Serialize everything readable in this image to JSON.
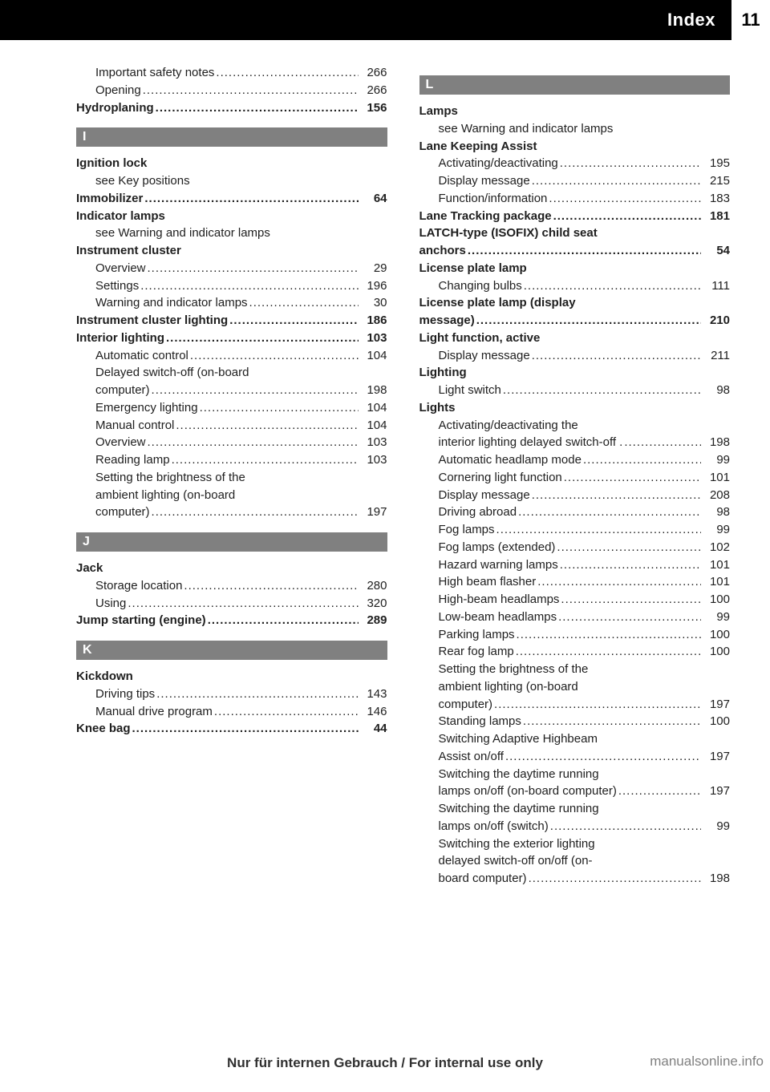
{
  "page_number": "11",
  "header_title": "Index",
  "footer_text": "Nur für internen Gebrauch / For internal use only",
  "watermark_text": "manualsonline.info",
  "dots": "....................................................................",
  "colors": {
    "header_bg": "#000000",
    "header_text": "#ffffff",
    "section_bg": "#808080",
    "section_text": "#ffffff",
    "body_text": "#202020",
    "page_bg": "#ffffff",
    "watermark_text": "#808080"
  },
  "columns": [
    {
      "items": [
        {
          "type": "entry",
          "level": 1,
          "bold": false,
          "label": "Important safety notes",
          "page": "266"
        },
        {
          "type": "entry",
          "level": 1,
          "bold": false,
          "label": "Opening",
          "page": "266"
        },
        {
          "type": "entry",
          "level": 0,
          "bold_all": true,
          "label": "Hydroplaning",
          "page": "156"
        },
        {
          "type": "section",
          "label": "I"
        },
        {
          "type": "line",
          "level": 0,
          "bold": true,
          "label": "Ignition lock"
        },
        {
          "type": "line",
          "level": 1,
          "bold": false,
          "label": "see Key positions"
        },
        {
          "type": "entry",
          "level": 0,
          "bold_all": true,
          "label": "Immobilizer",
          "page": "64"
        },
        {
          "type": "line",
          "level": 0,
          "bold": true,
          "label": "Indicator lamps"
        },
        {
          "type": "line",
          "level": 1,
          "bold": false,
          "label": "see Warning and indicator lamps"
        },
        {
          "type": "line",
          "level": 0,
          "bold": true,
          "label": "Instrument cluster"
        },
        {
          "type": "entry",
          "level": 1,
          "bold": false,
          "label": "Overview",
          "page": "29"
        },
        {
          "type": "entry",
          "level": 1,
          "bold": false,
          "label": "Settings",
          "page": "196"
        },
        {
          "type": "entry",
          "level": 1,
          "bold": false,
          "label": "Warning and indicator lamps",
          "page": "30"
        },
        {
          "type": "entry",
          "level": 0,
          "bold_all": true,
          "label": "Instrument cluster lighting",
          "page": "186"
        },
        {
          "type": "entry",
          "level": 0,
          "bold_all": true,
          "label": "Interior lighting",
          "page": "103"
        },
        {
          "type": "entry",
          "level": 1,
          "bold": false,
          "label": "Automatic control",
          "page": "104"
        },
        {
          "type": "line",
          "level": 1,
          "bold": false,
          "label": "Delayed switch-off (on-board"
        },
        {
          "type": "entry",
          "level": 1,
          "bold": false,
          "label": "computer)",
          "page": "198"
        },
        {
          "type": "entry",
          "level": 1,
          "bold": false,
          "label": "Emergency lighting",
          "page": "104"
        },
        {
          "type": "entry",
          "level": 1,
          "bold": false,
          "label": "Manual control",
          "page": "104"
        },
        {
          "type": "entry",
          "level": 1,
          "bold": false,
          "label": "Overview",
          "page": "103"
        },
        {
          "type": "entry",
          "level": 1,
          "bold": false,
          "label": "Reading lamp",
          "page": "103"
        },
        {
          "type": "line",
          "level": 1,
          "bold": false,
          "label": "Setting the brightness of the"
        },
        {
          "type": "line",
          "level": 1,
          "bold": false,
          "label": "ambient lighting (on-board"
        },
        {
          "type": "entry",
          "level": 1,
          "bold": false,
          "label": "computer)",
          "page": "197"
        },
        {
          "type": "section",
          "label": "J"
        },
        {
          "type": "line",
          "level": 0,
          "bold": true,
          "label": "Jack"
        },
        {
          "type": "entry",
          "level": 1,
          "bold": false,
          "label": "Storage location",
          "page": "280"
        },
        {
          "type": "entry",
          "level": 1,
          "bold": false,
          "label": "Using",
          "page": "320"
        },
        {
          "type": "entry",
          "level": 0,
          "bold_all": true,
          "label": "Jump starting (engine)",
          "page": "289"
        },
        {
          "type": "section",
          "label": "K"
        },
        {
          "type": "line",
          "level": 0,
          "bold": true,
          "label": "Kickdown"
        },
        {
          "type": "entry",
          "level": 1,
          "bold": false,
          "label": "Driving tips",
          "page": "143"
        },
        {
          "type": "entry",
          "level": 1,
          "bold": false,
          "label": "Manual drive program",
          "page": "146"
        },
        {
          "type": "entry",
          "level": 0,
          "bold_all": true,
          "label": "Knee bag",
          "page": "44"
        }
      ]
    },
    {
      "items": [
        {
          "type": "section",
          "label": "L"
        },
        {
          "type": "line",
          "level": 0,
          "bold": true,
          "label": "Lamps"
        },
        {
          "type": "line",
          "level": 1,
          "bold": false,
          "label": "see Warning and indicator lamps"
        },
        {
          "type": "line",
          "level": 0,
          "bold": true,
          "label": "Lane Keeping Assist"
        },
        {
          "type": "entry",
          "level": 1,
          "bold": false,
          "label": "Activating/deactivating",
          "page": "195"
        },
        {
          "type": "entry",
          "level": 1,
          "bold": false,
          "label": "Display message",
          "page": "215"
        },
        {
          "type": "entry",
          "level": 1,
          "bold": false,
          "label": "Function/information",
          "page": "183"
        },
        {
          "type": "entry",
          "level": 0,
          "bold_all": true,
          "label": "Lane Tracking package",
          "page": "181"
        },
        {
          "type": "line",
          "level": 0,
          "bold": true,
          "label": "LATCH-type (ISOFIX) child seat"
        },
        {
          "type": "entry",
          "level": 0,
          "bold_all": true,
          "label": "anchors",
          "page": "54"
        },
        {
          "type": "line",
          "level": 0,
          "bold": true,
          "label": "License plate lamp"
        },
        {
          "type": "entry",
          "level": 1,
          "bold": false,
          "label": "Changing bulbs",
          "page": "111"
        },
        {
          "type": "line",
          "level": 0,
          "bold": true,
          "label": "License plate lamp (display"
        },
        {
          "type": "entry",
          "level": 0,
          "bold_all": true,
          "label": "message)",
          "page": "210"
        },
        {
          "type": "line",
          "level": 0,
          "bold": true,
          "label": "Light function, active"
        },
        {
          "type": "entry",
          "level": 1,
          "bold": false,
          "label": "Display message",
          "page": "211"
        },
        {
          "type": "line",
          "level": 0,
          "bold": true,
          "label": "Lighting"
        },
        {
          "type": "entry",
          "level": 1,
          "bold": false,
          "label": "Light switch",
          "page": "98"
        },
        {
          "type": "line",
          "level": 0,
          "bold": true,
          "label": "Lights"
        },
        {
          "type": "line",
          "level": 1,
          "bold": false,
          "label": "Activating/deactivating the"
        },
        {
          "type": "entry",
          "level": 1,
          "bold": false,
          "label": "interior lighting delayed switch-off .",
          "page": "198"
        },
        {
          "type": "entry",
          "level": 1,
          "bold": false,
          "label": "Automatic headlamp mode",
          "page": "99"
        },
        {
          "type": "entry",
          "level": 1,
          "bold": false,
          "label": "Cornering light function",
          "page": "101"
        },
        {
          "type": "entry",
          "level": 1,
          "bold": false,
          "label": "Display message",
          "page": "208"
        },
        {
          "type": "entry",
          "level": 1,
          "bold": false,
          "label": "Driving abroad",
          "page": "98"
        },
        {
          "type": "entry",
          "level": 1,
          "bold": false,
          "label": "Fog lamps",
          "page": "99"
        },
        {
          "type": "entry",
          "level": 1,
          "bold": false,
          "label": "Fog lamps (extended)",
          "page": "102"
        },
        {
          "type": "entry",
          "level": 1,
          "bold": false,
          "label": "Hazard warning lamps",
          "page": "101"
        },
        {
          "type": "entry",
          "level": 1,
          "bold": false,
          "label": "High beam flasher",
          "page": "101"
        },
        {
          "type": "entry",
          "level": 1,
          "bold": false,
          "label": "High-beam headlamps",
          "page": "100"
        },
        {
          "type": "entry",
          "level": 1,
          "bold": false,
          "label": "Low-beam headlamps",
          "page": "99"
        },
        {
          "type": "entry",
          "level": 1,
          "bold": false,
          "label": "Parking lamps",
          "page": "100"
        },
        {
          "type": "entry",
          "level": 1,
          "bold": false,
          "label": "Rear fog lamp",
          "page": "100"
        },
        {
          "type": "line",
          "level": 1,
          "bold": false,
          "label": "Setting the brightness of the"
        },
        {
          "type": "line",
          "level": 1,
          "bold": false,
          "label": "ambient lighting (on-board"
        },
        {
          "type": "entry",
          "level": 1,
          "bold": false,
          "label": "computer)",
          "page": "197"
        },
        {
          "type": "entry",
          "level": 1,
          "bold": false,
          "label": "Standing lamps",
          "page": "100"
        },
        {
          "type": "line",
          "level": 1,
          "bold": false,
          "label": "Switching Adaptive Highbeam"
        },
        {
          "type": "entry",
          "level": 1,
          "bold": false,
          "label": "Assist on/off",
          "page": "197"
        },
        {
          "type": "line",
          "level": 1,
          "bold": false,
          "label": "Switching the daytime running"
        },
        {
          "type": "entry",
          "level": 1,
          "bold": false,
          "label": "lamps on/off (on-board computer)",
          "page": "197"
        },
        {
          "type": "line",
          "level": 1,
          "bold": false,
          "label": "Switching the daytime running"
        },
        {
          "type": "entry",
          "level": 1,
          "bold": false,
          "label": "lamps on/off (switch)",
          "page": "99"
        },
        {
          "type": "line",
          "level": 1,
          "bold": false,
          "label": "Switching the exterior lighting"
        },
        {
          "type": "line",
          "level": 1,
          "bold": false,
          "label": "delayed switch-off on/off (on-"
        },
        {
          "type": "entry",
          "level": 1,
          "bold": false,
          "label": "board computer)",
          "page": "198"
        }
      ]
    }
  ]
}
